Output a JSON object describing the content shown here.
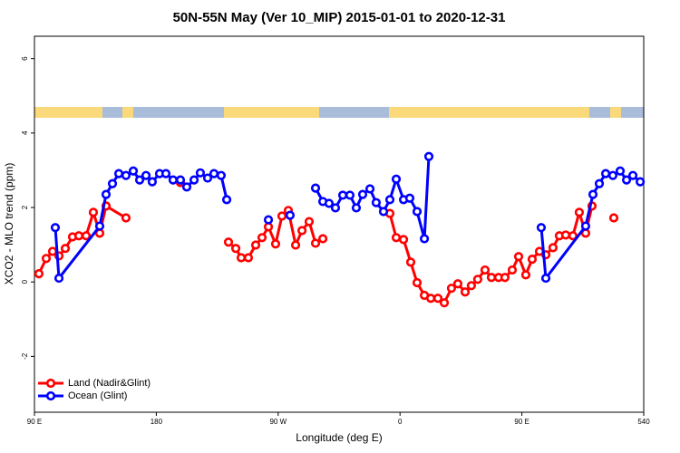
{
  "chart_data": {
    "type": "line",
    "title": "50N-55N May (Ver 10_MIP)   2015-01-01 to 2020-12-31",
    "x_label": "Longitude (deg E)",
    "y_label": "XCO2 - MLO trend (ppm)",
    "xlim": [
      90,
      540
    ],
    "ylim": [
      -3.5,
      6.6
    ],
    "xticks": [
      {
        "value": 90,
        "label": "90 E"
      },
      180,
      {
        "value": 270,
        "label": "90 W"
      },
      {
        "value": 360,
        "label": "0"
      },
      {
        "value": 450,
        "label": "90 E"
      },
      540
    ],
    "yticks": [
      -2,
      0,
      2,
      4,
      6
    ],
    "legend": "bottom-left",
    "series": [
      {
        "name": "Land (Nadir&Glint)",
        "color": "#ff0000",
        "x": [
          93.3,
          98.7,
          103.4,
          108.1,
          112.8,
          118.1,
          122.8,
          128.2,
          133.5,
          138.2,
          142.9,
          157.6,
          null,
          197.8,
          null,
          233.3,
          238.7,
          242.7,
          248.0,
          253.4,
          258.1,
          262.8,
          268.1,
          272.8,
          277.5,
          282.9,
          287.6,
          292.9,
          297.6,
          303.0,
          null,
          352.5,
          357.2,
          362.6,
          367.9,
          372.6,
          378.0,
          382.7,
          388.0,
          392.7,
          398.0,
          402.7,
          408.1,
          412.7,
          417.4,
          422.8,
          427.5,
          432.8,
          437.5,
          442.9,
          447.6,
          452.9,
          457.6,
          463.0,
          467.7,
          473.0,
          477.7,
          482.4,
          487.7,
          492.4,
          497.1,
          501.8,
          null,
          517.9
        ],
        "values": [
          0.22,
          0.63,
          0.82,
          0.7,
          0.9,
          1.21,
          1.24,
          1.24,
          1.87,
          1.31,
          2.04,
          1.72,
          null,
          2.67,
          null,
          1.07,
          0.9,
          0.65,
          0.65,
          0.99,
          1.19,
          1.48,
          1.02,
          1.77,
          1.92,
          0.99,
          1.38,
          1.62,
          1.04,
          1.16,
          null,
          1.84,
          1.19,
          1.14,
          0.53,
          -0.02,
          -0.36,
          -0.44,
          -0.44,
          -0.56,
          -0.17,
          -0.05,
          -0.27,
          -0.1,
          0.07,
          0.32,
          0.12,
          0.12,
          0.12,
          0.32,
          0.68,
          0.19,
          0.61,
          0.82,
          0.73,
          0.92,
          1.24,
          1.26,
          1.24,
          1.87,
          1.31,
          2.04,
          null,
          1.72
        ]
      },
      {
        "name": "Ocean (Glint)",
        "color": "#0000ff",
        "x": [
          105.4,
          108.1,
          138.2,
          142.9,
          147.6,
          152.3,
          157.6,
          163.0,
          167.7,
          172.4,
          177.0,
          182.4,
          187.1,
          192.4,
          197.8,
          202.5,
          207.9,
          212.5,
          217.9,
          222.6,
          227.9,
          232.0,
          null,
          262.8,
          null,
          278.8,
          null,
          297.6,
          303.0,
          307.6,
          312.3,
          317.7,
          323.0,
          327.7,
          332.4,
          337.8,
          342.4,
          347.8,
          352.5,
          357.2,
          362.6,
          367.2,
          372.6,
          378.0,
          381.3,
          null,
          464.3,
          467.7,
          497.1,
          502.5,
          507.2,
          511.9,
          517.2,
          522.6,
          527.3,
          532.0,
          537.4
        ],
        "values": [
          1.46,
          0.1,
          1.5,
          2.35,
          2.64,
          2.91,
          2.86,
          2.98,
          2.74,
          2.86,
          2.69,
          2.91,
          2.91,
          2.74,
          2.74,
          2.55,
          2.74,
          2.93,
          2.79,
          2.91,
          2.86,
          2.21,
          null,
          1.67,
          null,
          1.79,
          null,
          2.52,
          2.16,
          2.11,
          1.99,
          2.33,
          2.33,
          1.99,
          2.35,
          2.5,
          2.13,
          1.89,
          2.21,
          2.76,
          2.21,
          2.25,
          1.89,
          1.16,
          3.37,
          null,
          1.46,
          0.1,
          1.5,
          2.35,
          2.64,
          2.91,
          2.86,
          2.98,
          2.74,
          2.86,
          2.69
        ]
      }
    ]
  }
}
